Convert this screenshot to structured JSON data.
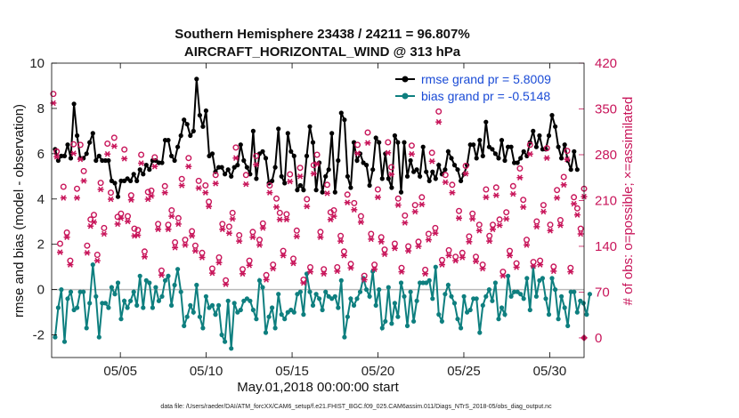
{
  "chart_data": {
    "type": "line",
    "title": "Southern Hemisphere 23438 / 24211 = 96.807%",
    "subtitle": "AIRCRAFT_HORIZONTAL_WIND @ 313 hPa",
    "xlabel": "May.01,2018 00:00:00 start",
    "ylabel": "rmse and bias (model - observation)",
    "ylabel_right": "# of obs: o=possible; ×=assimilated",
    "x_ticks": [
      "05/05",
      "05/10",
      "05/15",
      "05/20",
      "05/25",
      "05/30"
    ],
    "x_tick_days": [
      5,
      10,
      15,
      20,
      25,
      30
    ],
    "xlim": [
      1,
      32
    ],
    "ylim": [
      -3,
      10
    ],
    "y_ticks": [
      "-2",
      "0",
      "2",
      "4",
      "6",
      "8",
      "10"
    ],
    "y_tick_values": [
      -2,
      0,
      2,
      4,
      6,
      8,
      10
    ],
    "ylim_right": [
      -30,
      420
    ],
    "y_ticks_right": [
      "0",
      "70",
      "140",
      "210",
      "280",
      "350",
      "420"
    ],
    "y_tick_values_right": [
      0,
      70,
      140,
      210,
      280,
      350,
      420
    ],
    "grid": false,
    "legend_position": "top-right",
    "series": [
      {
        "name": "rmse grand pr = 5.8009",
        "color": "#000000",
        "values": [
          6.2,
          5.7,
          5.9,
          5.9,
          6.4,
          5.8,
          8.2,
          6.8,
          5.8,
          5.8,
          6.0,
          6.5,
          6.9,
          5.7,
          5.9,
          5.7,
          5.7,
          5.7,
          4.8,
          4.7,
          4.1,
          4.8,
          4.8,
          4.9,
          4.8,
          5.1,
          4.8,
          5.3,
          5.1,
          5.5,
          5.3,
          5.7,
          5.7,
          5.6,
          5.6,
          6.6,
          6.6,
          5.9,
          5.7,
          6.3,
          6.8,
          7.5,
          7.3,
          6.8,
          7.0,
          9.3,
          7.7,
          7.2,
          7.9,
          5.9,
          6.0,
          5.2,
          5.4,
          5.4,
          5.1,
          5.3,
          5.0,
          5.4,
          5.5,
          6.4,
          5.7,
          5.4,
          5.1,
          7.0,
          4.9,
          6.0,
          6.1,
          5.8,
          4.7,
          4.8,
          5.4,
          7.1,
          5.0,
          4.7,
          6.9,
          6.1,
          5.9,
          4.4,
          4.6,
          4.4,
          5.9,
          7.2,
          6.5,
          4.4,
          5.6,
          4.3,
          5.0,
          5.3,
          6.9,
          4.3,
          5.7,
          7.8,
          7.5,
          5.0,
          4.5,
          6.5,
          5.7,
          6.0,
          5.6,
          5.5,
          4.6,
          5.3,
          6.7,
          6.5,
          4.9,
          6.0,
          4.9,
          4.5,
          6.8,
          6.5,
          4.3,
          6.5,
          5.0,
          5.7,
          5.2,
          5.3,
          5.0,
          6.3,
          5.2,
          4.8,
          5.2,
          4.9,
          5.5,
          5.1,
          5.3,
          6.1,
          5.8,
          5.5,
          5.3,
          4.8,
          5.1,
          5.5,
          6.4,
          6.4,
          5.8,
          6.6,
          5.9,
          7.4,
          6.3,
          6.2,
          6.0,
          5.8,
          6.6,
          5.7,
          6.3,
          6.3,
          5.6,
          5.6,
          5.8,
          6.1,
          5.9,
          6.5,
          7.0,
          6.3,
          6.8,
          6.2,
          6.2,
          6.8,
          7.7,
          7.2,
          6.3,
          5.8,
          6.4,
          5.7,
          5.3,
          6.1,
          5.3
        ]
      },
      {
        "name": "bias grand pr = -0.5148",
        "color": "#0e7f7f",
        "values": [
          -2.1,
          -0.8,
          0.0,
          -2.3,
          -0.4,
          -0.1,
          -0.9,
          -0.8,
          -0.1,
          -0.1,
          -1.7,
          -0.6,
          1.1,
          -0.3,
          -2.1,
          -0.6,
          -0.6,
          -0.8,
          0.1,
          -0.2,
          0.3,
          -1.3,
          -0.5,
          -0.8,
          -0.5,
          -0.1,
          -0.7,
          0.6,
          -0.8,
          0.4,
          0.3,
          -0.8,
          0.1,
          -0.5,
          -0.3,
          0.4,
          0.6,
          -0.7,
          0.2,
          0.9,
          -0.1,
          -1.6,
          -1.2,
          -0.7,
          -1.0,
          0.2,
          -1.2,
          -1.7,
          -0.3,
          -0.8,
          -0.7,
          -1.1,
          -0.7,
          -2.0,
          -2.3,
          -0.5,
          -2.6,
          -0.6,
          -1.0,
          -0.9,
          -0.5,
          -0.4,
          -0.5,
          -0.9,
          -1.3,
          0.4,
          0.1,
          -1.9,
          -1.2,
          -0.8,
          -1.7,
          -0.2,
          -1.1,
          -1.3,
          -1.0,
          -0.9,
          -1.0,
          -0.2,
          -0.1,
          -1.1,
          0.7,
          -0.1,
          -0.7,
          -0.2,
          -0.4,
          -0.9,
          -0.1,
          -0.3,
          -0.4,
          -0.3,
          -0.8,
          0.4,
          -2.1,
          -1.2,
          -0.4,
          -0.7,
          -0.4,
          -0.1,
          0.5,
          0.0,
          -0.3,
          0.8,
          -0.7,
          0.0,
          -1.7,
          -1.4,
          0.1,
          -1.5,
          -0.6,
          -1.2,
          0.3,
          -0.3,
          -1.6,
          -0.1,
          -1.4,
          -0.5,
          0.3,
          0.3,
          0.3,
          0.4,
          -0.4,
          1.0,
          -1.1,
          -1.4,
          -0.2,
          0.2,
          -0.3,
          -0.6,
          -1.3,
          -1.7,
          -0.3,
          -1.0,
          -0.9,
          -0.4,
          -0.4,
          -1.9,
          -0.7,
          -0.3,
          0.0,
          -0.5,
          0.3,
          -1.3,
          -0.8,
          -1.1,
          0.6,
          -0.3,
          -0.1,
          -0.1,
          -0.2,
          -0.4,
          0.5,
          -0.9,
          1.0,
          -0.3,
          0.4,
          0.5,
          -0.4,
          -1.1,
          0.5,
          0.0,
          -1.3,
          -0.3,
          -0.8,
          -1.6,
          -0.1,
          -0.1,
          -1.0,
          -0.5,
          -0.6,
          -1.1,
          -0.2
        ]
      },
      {
        "name": "possible obs",
        "color": "#c8155a",
        "marker": "o",
        "axis": "right",
        "values": [
          373,
          285,
          144,
          231,
          161,
          118,
          296,
          228,
          295,
          255,
          141,
          181,
          188,
          127,
          237,
          168,
          297,
          222,
          306,
          185,
          190,
          288,
          186,
          218,
          167,
          165,
          280,
          132,
          223,
          225,
          276,
          174,
          103,
          232,
          173,
          195,
          146,
          183,
          243,
          150,
          275,
          163,
          141,
          240,
          130,
          233,
          208,
          106,
          249,
          123,
          174,
          88,
          170,
          191,
          291,
          157,
          105,
          249,
          118,
          162,
          278,
          150,
          175,
          96,
          233,
          112,
          213,
          191,
          133,
          189,
          250,
          121,
          164,
          260,
          89,
          212,
          108,
          264,
          280,
          162,
          105,
          234,
          192,
          195,
          108,
          156,
          132,
          219,
          113,
          206,
          295,
          186,
          95,
          314,
          159,
          112,
          227,
          154,
          135,
          299,
          261,
          144,
          213,
          107,
          187,
          140,
          294,
          203,
          147,
          215,
          104,
          159,
          283,
          168,
          346,
          119,
          249,
          134,
          234,
          124,
          194,
          130,
          263,
          155,
          190,
          124,
          173,
          112,
          227,
          156,
          173,
          230,
          181,
          101,
          192,
          133,
          232,
          114,
          259,
          211,
          150,
          295,
          116,
          178,
          118,
          203,
          290,
          173,
          109,
          226,
          180,
          246,
          286,
          107,
          215,
          198,
          167,
          228
        ]
      },
      {
        "name": "assimilated obs",
        "color": "#c8155a",
        "marker": "*",
        "axis": "right",
        "values": [
          359,
          277,
          131,
          214,
          154,
          112,
          282,
          214,
          273,
          240,
          130,
          171,
          177,
          118,
          227,
          159,
          281,
          212,
          293,
          174,
          183,
          274,
          178,
          211,
          156,
          157,
          267,
          124,
          212,
          217,
          262,
          166,
          96,
          222,
          166,
          186,
          138,
          174,
          233,
          142,
          262,
          156,
          133,
          229,
          123,
          222,
          201,
          99,
          236,
          115,
          166,
          82,
          160,
          182,
          275,
          148,
          98,
          235,
          111,
          154,
          265,
          142,
          168,
          89,
          222,
          106,
          200,
          181,
          126,
          181,
          239,
          114,
          155,
          247,
          84,
          201,
          101,
          251,
          266,
          154,
          98,
          221,
          181,
          186,
          102,
          148,
          126,
          207,
          107,
          196,
          282,
          177,
          89,
          298,
          151,
          105,
          215,
          147,
          128,
          283,
          250,
          137,
          203,
          101,
          176,
          133,
          281,
          193,
          140,
          204,
          98,
          150,
          270,
          160,
          330,
          112,
          238,
          126,
          222,
          118,
          183,
          123,
          251,
          147,
          182,
          117,
          164,
          106,
          215,
          148,
          166,
          218,
          172,
          95,
          182,
          126,
          220,
          108,
          245,
          200,
          142,
          281,
          110,
          170,
          112,
          193,
          275,
          164,
          102,
          214,
          172,
          234,
          273,
          101,
          205,
          188,
          159,
          216
        ]
      }
    ],
    "extra_marker": {
      "label": "0",
      "axis": "right",
      "y": 0
    }
  },
  "footer": "data file: /Users/raeder/DAI/ATM_forcXX/CAM6_setup/f.e21.FHIST_BGC.f09_025.CAM6assim.011/Diags_NTrS_2018-05/obs_diag_output.nc",
  "colors": {
    "rmse": "#000000",
    "bias": "#0e7f7f",
    "counts": "#c8155a",
    "legend_text": "#1a4bd6",
    "zero_line": "#b8b8b8"
  }
}
